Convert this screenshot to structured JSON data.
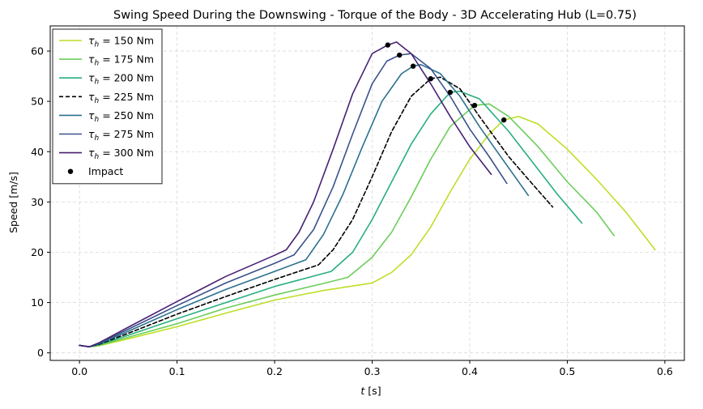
{
  "chart_data": {
    "type": "line",
    "title": "Swing Speed During the Downswing - Torque of the Body - 3D Accelerating Hub (L=0.75)",
    "xlabel": "t [s]",
    "ylabel": "Speed [m/s]",
    "xlim": [
      -0.03,
      0.62
    ],
    "ylim": [
      -1.5,
      65
    ],
    "xticks": [
      0.0,
      0.1,
      0.2,
      0.3,
      0.4,
      0.5,
      0.6
    ],
    "xtick_labels": [
      "0.0",
      "0.1",
      "0.2",
      "0.3",
      "0.4",
      "0.5",
      "0.6"
    ],
    "yticks": [
      0,
      10,
      20,
      30,
      40,
      50,
      60
    ],
    "ytick_labels": [
      "0",
      "10",
      "20",
      "30",
      "40",
      "50",
      "60"
    ],
    "grid": true,
    "legend_position": "upper-left",
    "series": [
      {
        "name": "τh = 150 Nm",
        "legend_prefix": "τ",
        "legend_sub": "h",
        "legend_suffix": " = 150 Nm",
        "color": "#bddf26",
        "dash": false,
        "x": [
          0.0,
          0.01,
          0.02,
          0.05,
          0.1,
          0.15,
          0.2,
          0.25,
          0.3,
          0.32,
          0.34,
          0.36,
          0.38,
          0.4,
          0.42,
          0.435,
          0.45,
          0.47,
          0.5,
          0.53,
          0.56,
          0.59
        ],
        "y": [
          1.5,
          1.2,
          1.4,
          2.8,
          5.2,
          7.9,
          10.5,
          12.4,
          13.9,
          16.0,
          19.5,
          25.0,
          32.0,
          38.5,
          43.5,
          46.3,
          47.0,
          45.5,
          40.5,
          34.5,
          28.0,
          20.5
        ],
        "impact": {
          "x": 0.435,
          "y": 46.3
        }
      },
      {
        "name": "τh = 175 Nm",
        "legend_prefix": "τ",
        "legend_sub": "h",
        "legend_suffix": " = 175 Nm",
        "color": "#6ccd5a",
        "dash": false,
        "x": [
          0.0,
          0.01,
          0.02,
          0.05,
          0.1,
          0.15,
          0.2,
          0.25,
          0.275,
          0.3,
          0.32,
          0.34,
          0.36,
          0.38,
          0.405,
          0.42,
          0.44,
          0.47,
          0.5,
          0.53,
          0.548
        ],
        "y": [
          1.5,
          1.2,
          1.5,
          3.1,
          5.8,
          8.9,
          11.5,
          13.8,
          15.0,
          19.0,
          24.0,
          31.0,
          38.5,
          45.0,
          49.2,
          49.5,
          47.0,
          41.0,
          34.0,
          28.0,
          23.3
        ],
        "impact": {
          "x": 0.405,
          "y": 49.2
        }
      },
      {
        "name": "τh = 200 Nm",
        "legend_prefix": "τ",
        "legend_sub": "h",
        "legend_suffix": " = 200 Nm",
        "color": "#28ae80",
        "dash": false,
        "x": [
          0.0,
          0.01,
          0.02,
          0.05,
          0.1,
          0.15,
          0.2,
          0.258,
          0.28,
          0.3,
          0.32,
          0.34,
          0.36,
          0.38,
          0.39,
          0.41,
          0.44,
          0.47,
          0.49,
          0.515
        ],
        "y": [
          1.5,
          1.2,
          1.6,
          3.5,
          6.8,
          10.0,
          13.2,
          16.2,
          20.0,
          26.5,
          34.0,
          41.5,
          47.5,
          51.8,
          52.0,
          50.5,
          44.0,
          36.5,
          31.5,
          25.8
        ],
        "impact": {
          "x": 0.38,
          "y": 51.8
        }
      },
      {
        "name": "τh = 225 Nm",
        "legend_prefix": "τ",
        "legend_sub": "h",
        "legend_suffix": " = 225 Nm",
        "color": "#000000",
        "dash": true,
        "x": [
          0.0,
          0.01,
          0.02,
          0.05,
          0.1,
          0.15,
          0.2,
          0.245,
          0.26,
          0.28,
          0.3,
          0.32,
          0.34,
          0.36,
          0.37,
          0.39,
          0.41,
          0.44,
          0.46,
          0.485
        ],
        "y": [
          1.5,
          1.2,
          1.7,
          3.9,
          7.7,
          11.2,
          14.6,
          17.5,
          20.5,
          26.5,
          35.0,
          44.0,
          51.0,
          54.5,
          54.8,
          52.5,
          47.0,
          39.0,
          34.5,
          29.0
        ],
        "impact": {
          "x": 0.36,
          "y": 54.5
        }
      },
      {
        "name": "τh = 250 Nm",
        "legend_prefix": "τ",
        "legend_sub": "h",
        "legend_suffix": " = 250 Nm",
        "color": "#2c718e",
        "dash": false,
        "x": [
          0.0,
          0.01,
          0.02,
          0.05,
          0.1,
          0.15,
          0.2,
          0.232,
          0.25,
          0.27,
          0.29,
          0.31,
          0.33,
          0.342,
          0.35,
          0.37,
          0.39,
          0.41,
          0.43,
          0.46
        ],
        "y": [
          1.5,
          1.2,
          1.8,
          4.3,
          8.6,
          12.6,
          16.2,
          18.5,
          23.5,
          31.5,
          41.0,
          50.0,
          55.5,
          57.0,
          57.3,
          55.5,
          51.0,
          45.0,
          39.5,
          31.3
        ],
        "impact": {
          "x": 0.342,
          "y": 57.0
        }
      },
      {
        "name": "τh = 275 Nm",
        "legend_prefix": "τ",
        "legend_sub": "h",
        "legend_suffix": " = 275 Nm",
        "color": "#3b528b",
        "dash": false,
        "x": [
          0.0,
          0.01,
          0.02,
          0.05,
          0.1,
          0.15,
          0.2,
          0.22,
          0.24,
          0.26,
          0.28,
          0.3,
          0.315,
          0.328,
          0.34,
          0.36,
          0.38,
          0.4,
          0.42,
          0.438
        ],
        "y": [
          1.5,
          1.2,
          1.9,
          4.7,
          9.4,
          13.9,
          17.8,
          19.5,
          24.5,
          33.0,
          43.5,
          53.5,
          58.0,
          59.2,
          59.5,
          56.5,
          51.0,
          44.5,
          39.0,
          33.7
        ],
        "impact": {
          "x": 0.328,
          "y": 59.2
        }
      },
      {
        "name": "τh = 300 Nm",
        "legend_prefix": "τ",
        "legend_sub": "h",
        "legend_suffix": " = 300 Nm",
        "color": "#482173",
        "dash": false,
        "x": [
          0.0,
          0.01,
          0.02,
          0.05,
          0.1,
          0.15,
          0.2,
          0.212,
          0.225,
          0.24,
          0.26,
          0.28,
          0.3,
          0.316,
          0.325,
          0.34,
          0.36,
          0.38,
          0.4,
          0.422
        ],
        "y": [
          1.5,
          1.2,
          2.0,
          5.1,
          10.2,
          15.2,
          19.4,
          20.5,
          24.0,
          30.0,
          40.5,
          51.5,
          59.5,
          61.2,
          61.8,
          59.5,
          53.5,
          47.0,
          41.0,
          35.5
        ],
        "impact": {
          "x": 0.316,
          "y": 61.2
        }
      }
    ],
    "impact_legend": "Impact",
    "impact_color": "#000000"
  }
}
